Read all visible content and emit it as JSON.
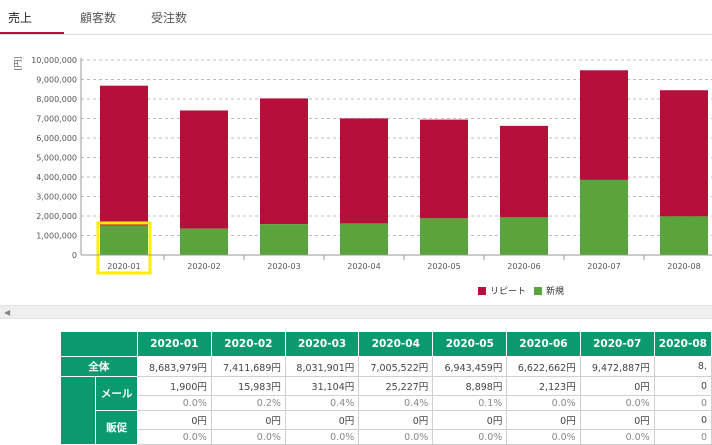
{
  "tabs": [
    {
      "label": "売上",
      "active": true
    },
    {
      "label": "顧客数",
      "active": false
    },
    {
      "label": "受注数",
      "active": false
    }
  ],
  "unit_label": "[円]",
  "colors": {
    "repeat": "#b5103c",
    "new": "#5aa43c",
    "accent": "#b5103c",
    "table_header": "#0a9a6e",
    "highlight": "#ffee00"
  },
  "legend": [
    {
      "label": "リピート",
      "color": "#b5103c"
    },
    {
      "label": "新規",
      "color": "#5aa43c"
    }
  ],
  "chart_data": {
    "type": "bar",
    "stacked": true,
    "categories": [
      "2020-01",
      "2020-02",
      "2020-03",
      "2020-04",
      "2020-05",
      "2020-06",
      "2020-07",
      "2020-08"
    ],
    "series": [
      {
        "name": "新規",
        "values": [
          1500000,
          1350000,
          1580000,
          1620000,
          1880000,
          1930000,
          3850000,
          1980000
        ]
      },
      {
        "name": "リピート",
        "values": [
          7183979,
          6061689,
          6451901,
          5385522,
          5063459,
          4692662,
          5622887,
          6470000
        ]
      }
    ],
    "yticks": [
      "0",
      "1,000,000",
      "2,000,000",
      "3,000,000",
      "4,000,000",
      "5,000,000",
      "6,000,000",
      "7,000,000",
      "8,000,000",
      "9,000,000",
      "10,000,000"
    ],
    "ylim": [
      0,
      10000000
    ],
    "highlighted_category": "2020-01"
  },
  "table": {
    "columns": [
      "2020-01",
      "2020-02",
      "2020-03",
      "2020-04",
      "2020-05",
      "2020-06",
      "2020-07",
      "2020-08"
    ],
    "total_label": "全体",
    "total_values": [
      "8,683,979円",
      "7,411,689円",
      "8,031,901円",
      "7,005,522円",
      "6,943,459円",
      "6,622,662円",
      "9,472,887円",
      "8,"
    ],
    "rows": [
      {
        "label": "メール",
        "values": [
          "1,900円",
          "15,983円",
          "31,104円",
          "25,227円",
          "8,898円",
          "2,123円",
          "0円",
          "0"
        ],
        "pcts": [
          "0.0%",
          "0.2%",
          "0.4%",
          "0.4%",
          "0.1%",
          "0.0%",
          "0.0%",
          "0"
        ]
      },
      {
        "label": "販促",
        "values": [
          "0円",
          "0円",
          "0円",
          "0円",
          "0円",
          "0円",
          "0円",
          "0"
        ],
        "pcts": [
          "0.0%",
          "0.0%",
          "0.0%",
          "0.0%",
          "0.0%",
          "0.0%",
          "0.0%",
          "0"
        ]
      }
    ]
  }
}
